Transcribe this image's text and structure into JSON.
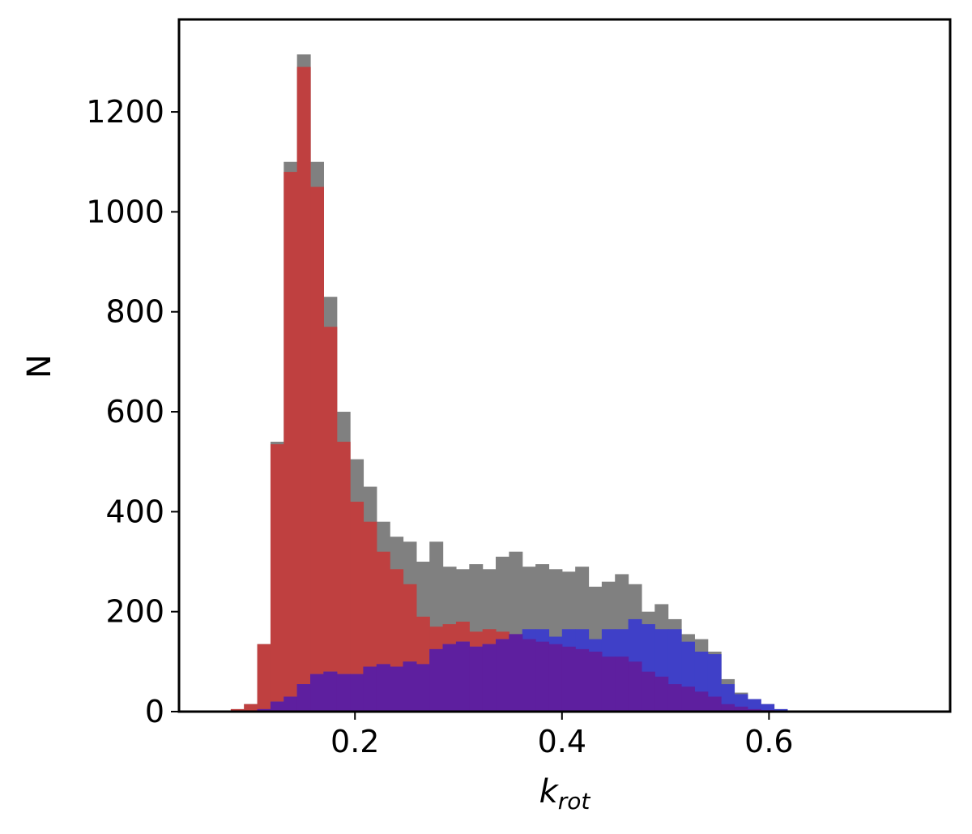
{
  "chart_data": {
    "type": "bar",
    "xlabel": "k",
    "xlabel_sub": "rot",
    "ylabel": "N",
    "xlim": [
      0.03,
      0.775
    ],
    "ylim": [
      0,
      1385
    ],
    "xticks": [
      0.2,
      0.4,
      0.6
    ],
    "yticks": [
      0,
      200,
      400,
      600,
      800,
      1000,
      1200
    ],
    "grid": false,
    "bin_start": 0.08,
    "bin_width": 0.0128,
    "colors": {
      "total": "#808080",
      "red": "#bf4040",
      "blue": "#3f40c8",
      "overlap": "#5e1f9f"
    },
    "series": [
      {
        "color": "total",
        "values": [
          5,
          15,
          135,
          540,
          1100,
          1315,
          1100,
          830,
          600,
          505,
          450,
          380,
          350,
          340,
          300,
          340,
          290,
          285,
          295,
          285,
          310,
          320,
          290,
          295,
          285,
          280,
          290,
          250,
          260,
          275,
          255,
          200,
          215,
          185,
          155,
          145,
          120,
          65,
          38,
          25,
          15,
          5
        ]
      },
      {
        "color": "red",
        "values": [
          5,
          15,
          135,
          535,
          1080,
          1290,
          1050,
          770,
          540,
          420,
          380,
          320,
          285,
          255,
          190,
          170,
          175,
          180,
          160,
          165,
          160,
          155,
          145,
          140,
          135,
          130,
          125,
          120,
          110,
          110,
          100,
          80,
          70,
          55,
          50,
          40,
          30,
          15,
          10,
          5,
          3,
          1
        ]
      },
      {
        "color": "blue",
        "values": [
          0,
          0,
          5,
          20,
          30,
          55,
          75,
          80,
          75,
          75,
          90,
          95,
          90,
          100,
          95,
          125,
          135,
          140,
          130,
          135,
          145,
          155,
          165,
          165,
          150,
          165,
          165,
          145,
          165,
          165,
          185,
          175,
          165,
          165,
          140,
          120,
          115,
          55,
          35,
          25,
          15,
          5
        ]
      }
    ]
  }
}
